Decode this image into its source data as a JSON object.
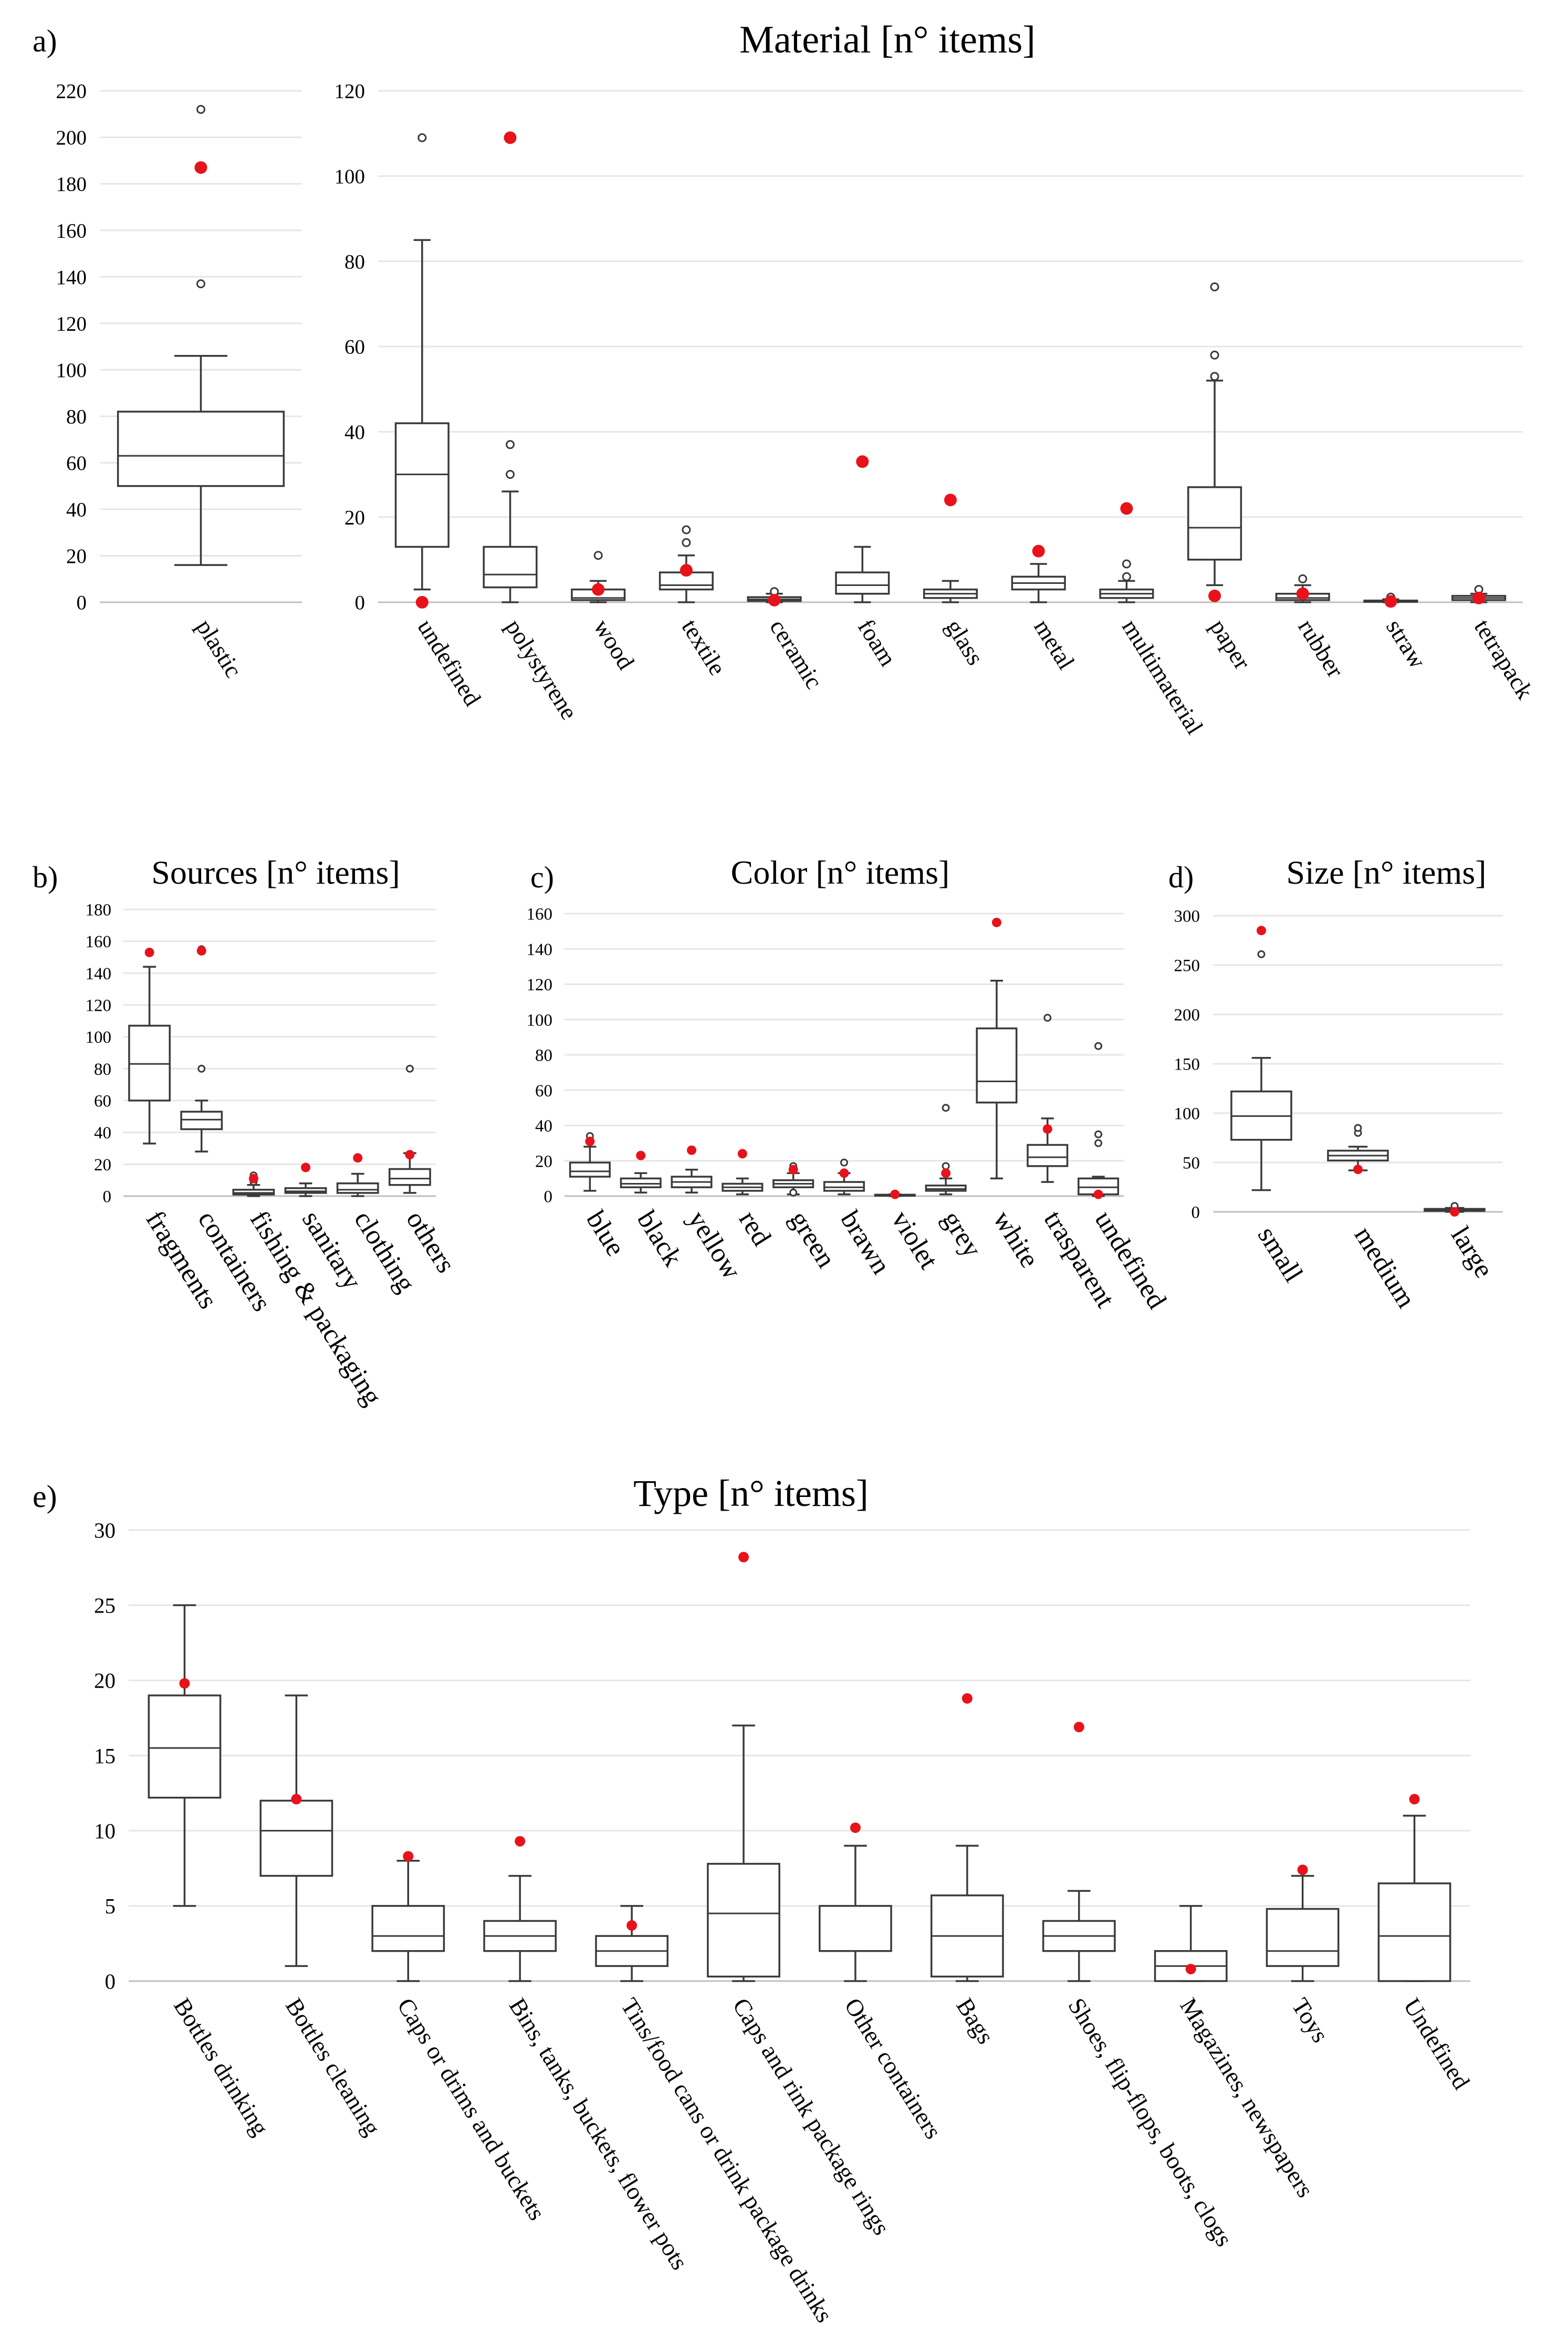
{
  "chart_data": [
    {
      "panel_label": "a)",
      "title": "Material [n° items]",
      "type": "box",
      "subplots": [
        {
          "ylim": [
            0,
            220
          ],
          "yticks": [
            0,
            20,
            40,
            60,
            80,
            100,
            120,
            140,
            160,
            180,
            200,
            220
          ],
          "categories": [
            "plastic"
          ],
          "boxes": [
            {
              "min": 16,
              "q1": 50,
              "median": 63,
              "q3": 82,
              "max": 106,
              "outliers": [
                137,
                212
              ],
              "marker": 187
            }
          ]
        },
        {
          "ylim": [
            0,
            120
          ],
          "yticks": [
            0,
            20,
            40,
            60,
            80,
            100,
            120
          ],
          "categories": [
            "undefined",
            "polystyrene",
            "wood",
            "textile",
            "ceramic",
            "foam",
            "glass",
            "metal",
            "multimaterial",
            "paper",
            "rubber",
            "straw",
            "tetrapack"
          ],
          "boxes": [
            {
              "min": 3,
              "q1": 13,
              "median": 30,
              "q3": 42,
              "max": 85,
              "outliers": [
                109
              ],
              "marker": 0
            },
            {
              "min": 0,
              "q1": 3.5,
              "median": 6.5,
              "q3": 13,
              "max": 26,
              "outliers": [
                30,
                37
              ],
              "marker": 109
            },
            {
              "min": 0,
              "q1": 0.5,
              "median": 1,
              "q3": 3,
              "max": 5,
              "outliers": [
                11
              ],
              "marker": 3
            },
            {
              "min": 0,
              "q1": 3,
              "median": 4,
              "q3": 7,
              "max": 11,
              "outliers": [
                14,
                17
              ],
              "marker": 7.5
            },
            {
              "min": 0,
              "q1": 0.3,
              "median": 0.7,
              "q3": 1.2,
              "max": 2,
              "outliers": [
                2.5
              ],
              "marker": 0.5
            },
            {
              "min": 0,
              "q1": 2,
              "median": 4,
              "q3": 7,
              "max": 13,
              "outliers": [],
              "marker": 33
            },
            {
              "min": 0,
              "q1": 1,
              "median": 2,
              "q3": 3,
              "max": 5,
              "outliers": [],
              "marker": 24
            },
            {
              "min": 0,
              "q1": 3,
              "median": 4.5,
              "q3": 6,
              "max": 9,
              "outliers": [],
              "marker": 12
            },
            {
              "min": 0,
              "q1": 1,
              "median": 2,
              "q3": 3,
              "max": 5,
              "outliers": [
                6,
                9
              ],
              "marker": 22
            },
            {
              "min": 4,
              "q1": 10,
              "median": 17.5,
              "q3": 27,
              "max": 52,
              "outliers": [
                53,
                58,
                74
              ],
              "marker": 1.5
            },
            {
              "min": 0,
              "q1": 0.5,
              "median": 1,
              "q3": 2,
              "max": 4,
              "outliers": [
                5.5
              ],
              "marker": 2
            },
            {
              "min": 0,
              "q1": 0.1,
              "median": 0.2,
              "q3": 0.4,
              "max": 0.7,
              "outliers": [
                1.2
              ],
              "marker": 0.2
            },
            {
              "min": 0,
              "q1": 0.5,
              "median": 1,
              "q3": 1.5,
              "max": 2,
              "outliers": [
                3
              ],
              "marker": 1
            }
          ]
        }
      ]
    },
    {
      "panel_label": "b)",
      "title": "Sources [n° items]",
      "type": "box",
      "ylim": [
        0,
        180
      ],
      "yticks": [
        0,
        20,
        40,
        60,
        80,
        100,
        120,
        140,
        160,
        180
      ],
      "categories": [
        "fragments",
        "containers",
        "fishing & packaging",
        "sanitary",
        "clothing",
        "others"
      ],
      "boxes": [
        {
          "min": 33,
          "q1": 60,
          "median": 83,
          "q3": 107,
          "max": 144,
          "outliers": [],
          "marker": 153
        },
        {
          "min": 28,
          "q1": 42,
          "median": 48,
          "q3": 53,
          "max": 60,
          "outliers": [
            80,
            155
          ],
          "marker": 154
        },
        {
          "min": 0,
          "q1": 1,
          "median": 2,
          "q3": 4,
          "max": 7,
          "outliers": [
            9,
            13
          ],
          "marker": 11
        },
        {
          "min": 0,
          "q1": 2,
          "median": 3,
          "q3": 5,
          "max": 8,
          "outliers": [],
          "marker": 18
        },
        {
          "min": 0,
          "q1": 2,
          "median": 4,
          "q3": 8,
          "max": 14,
          "outliers": [],
          "marker": 24
        },
        {
          "min": 2,
          "q1": 7,
          "median": 11,
          "q3": 17,
          "max": 27,
          "outliers": [
            80
          ],
          "marker": 26
        }
      ]
    },
    {
      "panel_label": "c)",
      "title": "Color [n° items]",
      "type": "box",
      "ylim": [
        0,
        160
      ],
      "yticks": [
        0,
        20,
        40,
        60,
        80,
        100,
        120,
        140,
        160
      ],
      "categories": [
        "blue",
        "black",
        "yellow",
        "red",
        "green",
        "brawn",
        "violet",
        "grey",
        "white",
        "trasparent",
        "undefined"
      ],
      "boxes": [
        {
          "min": 3,
          "q1": 11,
          "median": 14,
          "q3": 19,
          "max": 28,
          "outliers": [
            34
          ],
          "marker": 31
        },
        {
          "min": 2,
          "q1": 5,
          "median": 7,
          "q3": 10,
          "max": 13,
          "outliers": [],
          "marker": 23
        },
        {
          "min": 2,
          "q1": 5,
          "median": 8,
          "q3": 11,
          "max": 15,
          "outliers": [],
          "marker": 26
        },
        {
          "min": 1,
          "q1": 3,
          "median": 5,
          "q3": 7,
          "max": 10,
          "outliers": [],
          "marker": 24
        },
        {
          "min": 1,
          "q1": 5,
          "median": 7,
          "q3": 9,
          "max": 13,
          "outliers": [
            2,
            17
          ],
          "marker": 15
        },
        {
          "min": 1,
          "q1": 3,
          "median": 5,
          "q3": 8,
          "max": 13,
          "outliers": [
            19
          ],
          "marker": 13
        },
        {
          "min": 0,
          "q1": 0.3,
          "median": 0.5,
          "q3": 0.8,
          "max": 1,
          "outliers": [],
          "marker": 1
        },
        {
          "min": 1,
          "q1": 3,
          "median": 4,
          "q3": 6,
          "max": 10,
          "outliers": [
            17,
            50
          ],
          "marker": 13
        },
        {
          "min": 10,
          "q1": 53,
          "median": 65,
          "q3": 95,
          "max": 122,
          "outliers": [],
          "marker": 155
        },
        {
          "min": 8,
          "q1": 17,
          "median": 22,
          "q3": 29,
          "max": 44,
          "outliers": [
            101
          ],
          "marker": 38
        },
        {
          "min": 0,
          "q1": 1,
          "median": 5,
          "q3": 10,
          "max": 11,
          "outliers": [
            30,
            35,
            85
          ],
          "marker": 1
        }
      ]
    },
    {
      "panel_label": "d)",
      "title": "Size [n° items]",
      "type": "box",
      "ylim": [
        0,
        300
      ],
      "yticks": [
        0,
        50,
        100,
        150,
        200,
        250,
        300
      ],
      "categories": [
        "small",
        "medium",
        "large"
      ],
      "boxes": [
        {
          "min": 22,
          "q1": 73,
          "median": 97,
          "q3": 122,
          "max": 156,
          "outliers": [
            261
          ],
          "marker": 285
        },
        {
          "min": 42,
          "q1": 52,
          "median": 57,
          "q3": 62,
          "max": 66,
          "outliers": [
            80,
            85
          ],
          "marker": 43
        },
        {
          "min": 0,
          "q1": 1,
          "median": 2,
          "q3": 3,
          "max": 4,
          "outliers": [
            6
          ],
          "marker": 0
        }
      ]
    },
    {
      "panel_label": "e)",
      "title": "Type [n° items]",
      "type": "box",
      "ylim": [
        0,
        30
      ],
      "yticks": [
        0,
        5,
        10,
        15,
        20,
        25,
        30
      ],
      "categories": [
        "Bottles drinking",
        "Bottles cleaning",
        "Caps or drims and buckets",
        "Bins, tanks, buckets, flower pots",
        "Tins/food cans or drink package drinks",
        "Caps and rink package rings",
        "Other containers",
        "Bags",
        "Shoes, flip-flops, boots, clogs",
        "Magazines, newspapers",
        "Toys",
        "Undefined"
      ],
      "boxes": [
        {
          "min": 5,
          "q1": 12.2,
          "median": 15.5,
          "q3": 19,
          "max": 25,
          "outliers": [],
          "marker": 19.8
        },
        {
          "min": 1,
          "q1": 7,
          "median": 10,
          "q3": 12,
          "max": 19,
          "outliers": [],
          "marker": 12.1
        },
        {
          "min": 0,
          "q1": 2,
          "median": 3,
          "q3": 5,
          "max": 8,
          "outliers": [],
          "marker": 8.3
        },
        {
          "min": 0,
          "q1": 2,
          "median": 3,
          "q3": 4,
          "max": 7,
          "outliers": [],
          "marker": 9.3
        },
        {
          "min": 0,
          "q1": 1,
          "median": 2,
          "q3": 3,
          "max": 5,
          "outliers": [],
          "marker": 3.7
        },
        {
          "min": 0,
          "q1": 0.3,
          "median": 4.5,
          "q3": 7.8,
          "max": 17,
          "outliers": [],
          "marker": 28.2
        },
        {
          "min": 0,
          "q1": 2,
          "median": 2,
          "q3": 5,
          "max": 9,
          "outliers": [],
          "marker": 10.2
        },
        {
          "min": 0,
          "q1": 0.3,
          "median": 3,
          "q3": 5.7,
          "max": 9,
          "outliers": [],
          "marker": 18.8
        },
        {
          "min": 0,
          "q1": 2,
          "median": 3,
          "q3": 4,
          "max": 6,
          "outliers": [],
          "marker": 16.9
        },
        {
          "min": 0,
          "q1": 0,
          "median": 1,
          "q3": 2,
          "max": 5,
          "outliers": [],
          "marker": 0.8
        },
        {
          "min": 0,
          "q1": 1,
          "median": 2,
          "q3": 4.8,
          "max": 7,
          "outliers": [],
          "marker": 7.4
        },
        {
          "min": 0,
          "q1": 0,
          "median": 3,
          "q3": 6.5,
          "max": 11,
          "outliers": [],
          "marker": 12.1
        }
      ]
    }
  ],
  "colors": {
    "marker": "#e8121b",
    "box": "#3a3a3a",
    "grid": "#e6e6e6",
    "axis": "#bfbfbf"
  }
}
